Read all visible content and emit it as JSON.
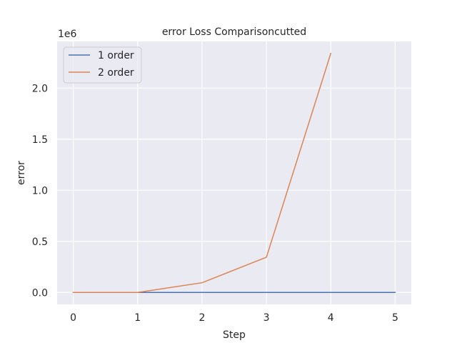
{
  "chart_data": {
    "type": "line",
    "title": "error Loss Comparisoncutted",
    "xlabel": "Step",
    "ylabel": "error",
    "y_offset_label": "1e6",
    "x": [
      0,
      1,
      2,
      3,
      4,
      5
    ],
    "xticks": [
      0,
      1,
      2,
      3,
      4,
      5
    ],
    "xtick_labels": [
      "0",
      "1",
      "2",
      "3",
      "4",
      "5"
    ],
    "yticks": [
      0,
      500000,
      1000000,
      1500000,
      2000000
    ],
    "ytick_labels": [
      "0.0",
      "0.5",
      "1.0",
      "1.5",
      "2.0"
    ],
    "xlim": [
      -0.25,
      5.25
    ],
    "ylim": [
      -117000,
      2457000
    ],
    "grid": true,
    "legend_position": "top-left",
    "series": [
      {
        "name": "1 order",
        "color": "#4c72b0",
        "x": [
          0,
          1,
          2,
          3,
          4,
          5
        ],
        "values": [
          0,
          0,
          0,
          0,
          0,
          0
        ]
      },
      {
        "name": "2 order",
        "color": "#dd8452",
        "x": [
          0,
          1,
          2,
          3,
          4
        ],
        "values": [
          0,
          0,
          95000,
          345000,
          2340000
        ]
      }
    ]
  }
}
